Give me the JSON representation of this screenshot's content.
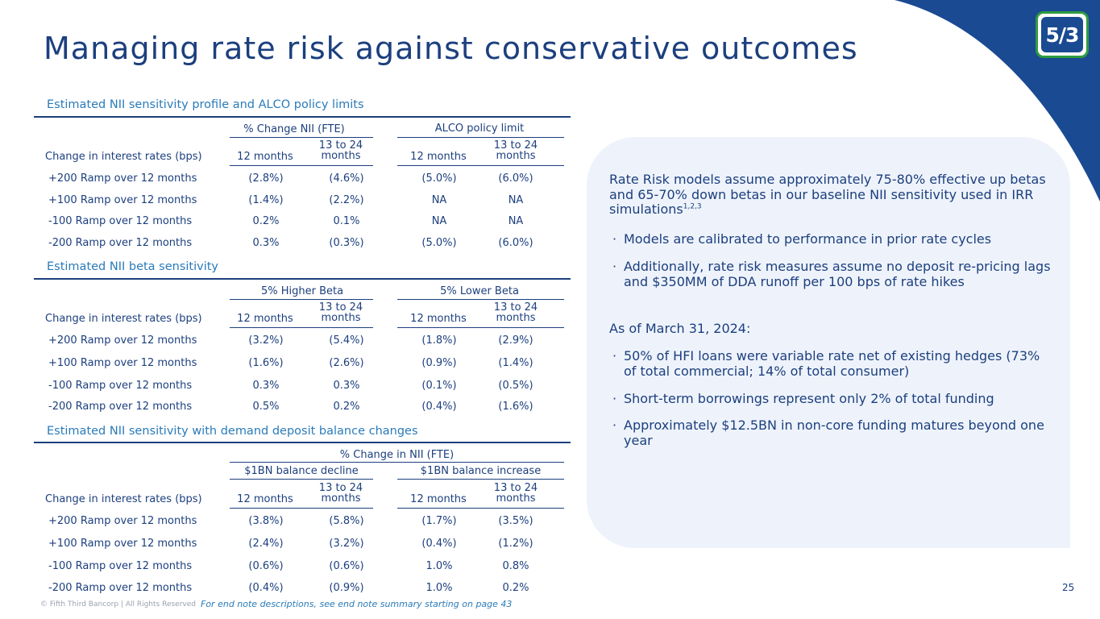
{
  "title": "Managing rate risk against conservative outcomes",
  "logo": {
    "text": "5/3"
  },
  "table1": {
    "title": "Estimated NII sensitivity profile and ALCO policy limits",
    "group_a": "% Change NII (FTE)",
    "group_b": "ALCO policy limit",
    "row_header": "Change in interest rates (bps)",
    "col_12": "12 months",
    "col_1324": "13 to 24 months",
    "rows": [
      {
        "label": "+200 Ramp over 12 months",
        "v": [
          "(2.8%)",
          "(4.6%)",
          "(5.0%)",
          "(6.0%)"
        ]
      },
      {
        "label": "+100 Ramp over 12 months",
        "v": [
          "(1.4%)",
          "(2.2%)",
          "NA",
          "NA"
        ]
      },
      {
        "label": "-100 Ramp over 12 months",
        "v": [
          "0.2%",
          "0.1%",
          "NA",
          "NA"
        ]
      },
      {
        "label": "-200 Ramp over 12 months",
        "v": [
          "0.3%",
          "(0.3%)",
          "(5.0%)",
          "(6.0%)"
        ]
      }
    ]
  },
  "table2": {
    "title": "Estimated NII beta sensitivity",
    "group_a": "5% Higher Beta",
    "group_b": "5% Lower Beta",
    "row_header": "Change in interest rates (bps)",
    "col_12": "12 months",
    "col_1324": "13 to 24 months",
    "rows": [
      {
        "label": "+200 Ramp over 12 months",
        "v": [
          "(3.2%)",
          "(5.4%)",
          "(1.8%)",
          "(2.9%)"
        ]
      },
      {
        "label": "+100 Ramp over 12 months",
        "v": [
          "(1.6%)",
          "(2.6%)",
          "(0.9%)",
          "(1.4%)"
        ]
      },
      {
        "label": "-100 Ramp over 12 months",
        "v": [
          "0.3%",
          "0.3%",
          "(0.1%)",
          "(0.5%)"
        ]
      },
      {
        "label": "-200 Ramp over 12 months",
        "v": [
          "0.5%",
          "0.2%",
          "(0.4%)",
          "(1.6%)"
        ]
      }
    ]
  },
  "table3": {
    "title": "Estimated NII sensitivity with demand deposit balance changes",
    "super_header": "% Change in NII (FTE)",
    "group_a": "$1BN balance decline",
    "group_b": "$1BN balance increase",
    "row_header": "Change in interest rates (bps)",
    "col_12": "12 months",
    "col_1324": "13 to 24 months",
    "rows": [
      {
        "label": "+200 Ramp over 12 months",
        "v": [
          "(3.8%)",
          "(5.8%)",
          "(1.7%)",
          "(3.5%)"
        ]
      },
      {
        "label": "+100 Ramp over 12 months",
        "v": [
          "(2.4%)",
          "(3.2%)",
          "(0.4%)",
          "(1.2%)"
        ]
      },
      {
        "label": "-100 Ramp over 12 months",
        "v": [
          "(0.6%)",
          "(0.6%)",
          "1.0%",
          "0.8%"
        ]
      },
      {
        "label": "-200 Ramp over 12 months",
        "v": [
          "(0.4%)",
          "(0.9%)",
          "1.0%",
          "0.2%"
        ]
      }
    ]
  },
  "side": {
    "intro": "Rate Risk models assume approximately 75-80% effective up betas and 65-70% down betas in our baseline NII sensitivity used in IRR simulations",
    "intro_sup": "1,2,3",
    "bullets1": [
      "Models are calibrated to performance in prior rate cycles",
      "Additionally, rate risk measures assume no deposit re-pricing lags and $350MM of DDA runoff per 100 bps of rate hikes"
    ],
    "asof": "As of March 31, 2024:",
    "bullets2": [
      "50% of HFI loans were variable rate net of existing hedges (73% of total commercial; 14% of total consumer)",
      "Short-term borrowings represent only 2% of total funding",
      "Approximately $12.5BN in non-core funding matures beyond one year"
    ],
    "bullet_char": "·"
  },
  "footer": {
    "copyright": "© Fifth Third Bancorp | All Rights Reserved",
    "note": "For end note descriptions, see end note summary starting on page 43",
    "page": "25"
  },
  "colors": {
    "navy": "#1c3f7e",
    "accent": "#2a7bb9",
    "panel": "#eef3fb",
    "brand_green": "#2e9b3f"
  }
}
